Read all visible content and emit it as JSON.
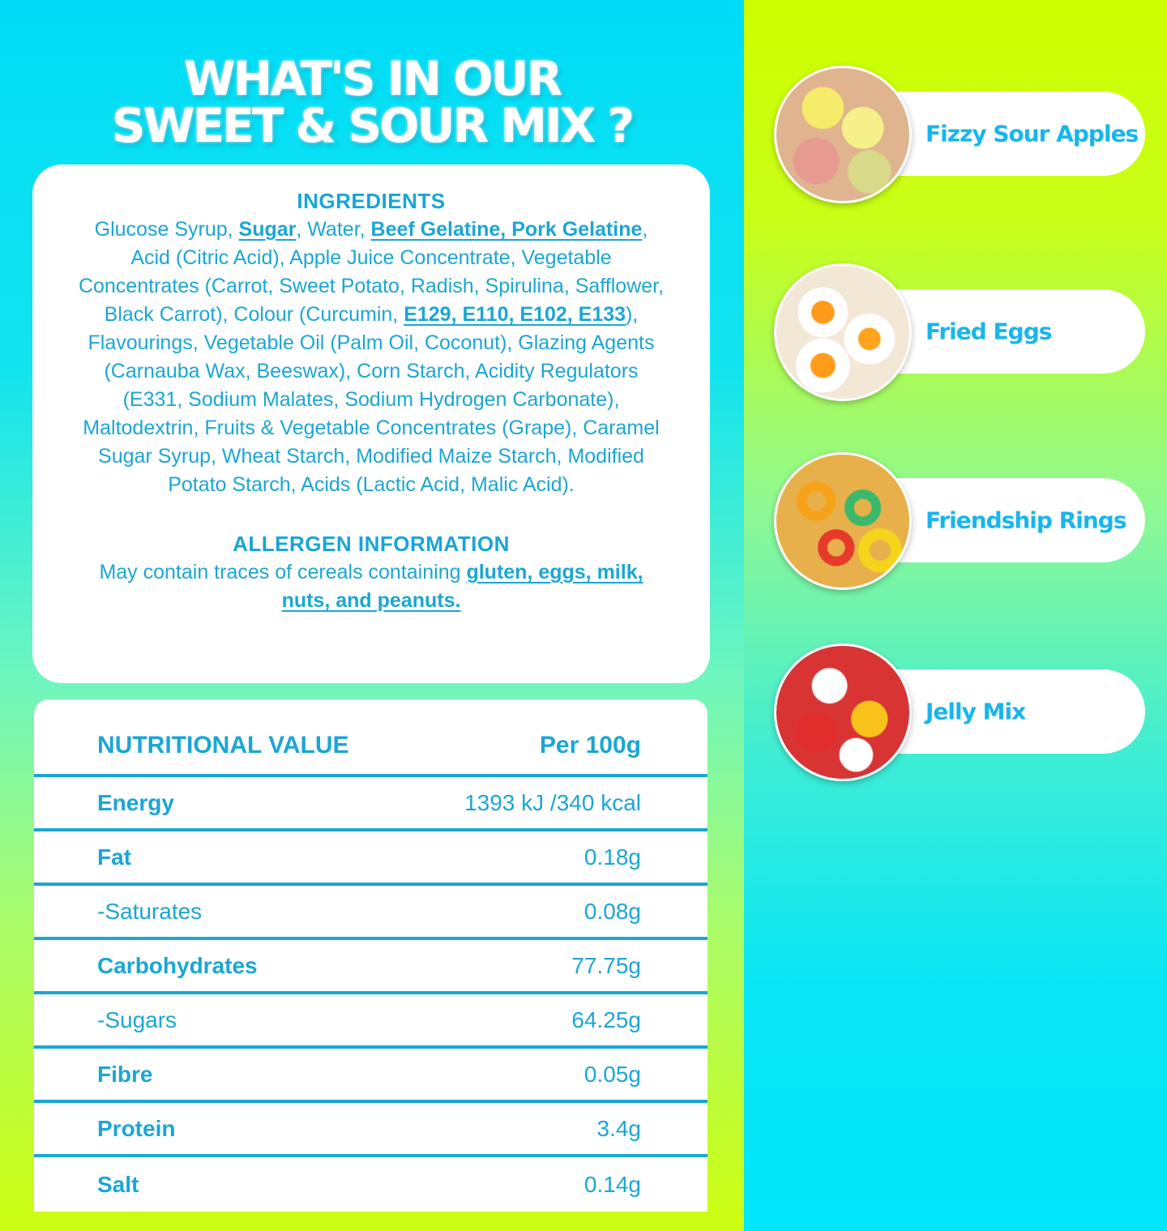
{
  "title": {
    "line1": "WHAT'S IN OUR",
    "line2": "SWEET & SOUR MIX ?"
  },
  "colors": {
    "text": "#1ba6d4",
    "left_top": "#00dcf7",
    "left_bottom": "#cdfd10"
  },
  "ingredients": {
    "heading": "INGREDIENTS",
    "segments": [
      {
        "t": "Glucose Syrup, "
      },
      {
        "t": "Sugar",
        "b": true
      },
      {
        "t": ", Water, "
      },
      {
        "t": "Beef Gelatine, Pork Gelatine",
        "b": true
      },
      {
        "t": ", Acid (Citric Acid), Apple Juice Concentrate, Vegetable Concentrates (Carrot, Sweet Potato, Radish, Spirulina, Safflower, Black Carrot), Colour (Curcumin, "
      },
      {
        "t": "E129, E110, E102, E133",
        "b": true
      },
      {
        "t": "), Flavourings, Vegetable Oil (Palm Oil, Coconut), Glazing Agents (Carnauba Wax, Beeswax), Corn Starch, Acidity Regulators (E331, Sodium Malates, Sodium Hydrogen Carbonate), Maltodextrin, Fruits & Vegetable Concentrates (Grape), Caramel Sugar Syrup, Wheat Starch, Modified Maize Starch, Modified Potato Starch, Acids (Lactic Acid, Malic Acid)."
      }
    ]
  },
  "allergen": {
    "heading": "ALLERGEN INFORMATION",
    "segments": [
      {
        "t": "May contain traces of cereals containing "
      },
      {
        "t": "gluten, eggs, milk, nuts, and peanuts.",
        "b": true
      }
    ]
  },
  "nutrition": {
    "header": {
      "label": "NUTRITIONAL VALUE",
      "value": "Per 100g"
    },
    "rows": [
      {
        "label": "Energy",
        "value": "1393 kJ /340 kcal"
      },
      {
        "label": "Fat",
        "value": "0.18g"
      },
      {
        "label": "-Saturates",
        "value": "0.08g"
      },
      {
        "label": "Carbohydrates",
        "value": "77.75g"
      },
      {
        "label": "-Sugars",
        "value": "64.25g"
      },
      {
        "label": "Fibre",
        "value": "0.05g"
      },
      {
        "label": "Protein",
        "value": "3.4g"
      },
      {
        "label": "Salt",
        "value": "0.14g"
      }
    ]
  },
  "products": [
    {
      "name": "Fizzy Sour Apples",
      "image": "fizzy-sour-apples-photo"
    },
    {
      "name": "Fried Eggs",
      "image": "fried-eggs-photo"
    },
    {
      "name": "Friendship Rings",
      "image": "friendship-rings-photo"
    },
    {
      "name": "Jelly Mix",
      "image": "jelly-mix-photo"
    }
  ]
}
